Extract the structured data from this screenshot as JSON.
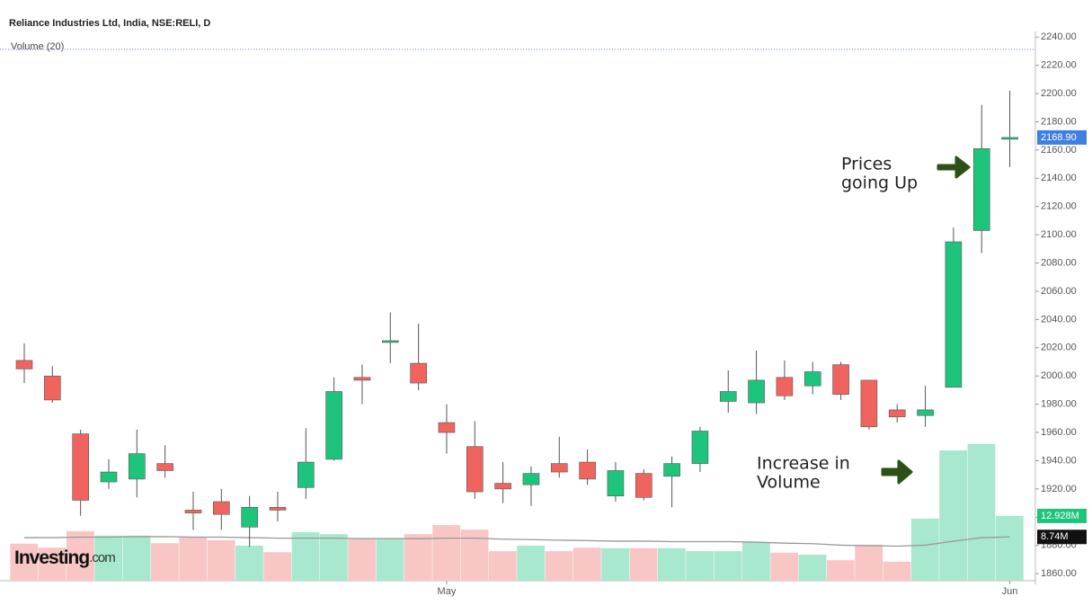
{
  "chart_data": {
    "type": "candlestick",
    "title": "Reliance Industries Ltd, India, NSE:RELI, D",
    "subtitle": "Volume (20)",
    "logo": "Investing",
    "logo_suffix": ".com",
    "categories": [
      null,
      null,
      null,
      null,
      null,
      null,
      null,
      null,
      null,
      null,
      null,
      null,
      null,
      null,
      null,
      "May",
      null,
      null,
      null,
      null,
      null,
      null,
      null,
      null,
      null,
      null,
      null,
      null,
      null,
      null,
      null,
      null,
      null,
      null,
      null,
      "Jun"
    ],
    "open": [
      2011,
      2000,
      1959,
      1925,
      1927,
      1938,
      1905,
      1911,
      1893,
      1907,
      1921,
      1941,
      1999,
      2024,
      2009,
      1967,
      1950,
      1924,
      1923,
      1938,
      1939,
      1915,
      1931,
      1929,
      1938,
      1982,
      1981,
      1999,
      1993,
      2008,
      1997,
      1976,
      1972,
      1992,
      2103,
      2168
    ],
    "high": [
      2023,
      2007,
      1962,
      1941,
      1962,
      1951,
      1918,
      1920,
      1915,
      1918,
      1963,
      1999,
      2008,
      2045,
      2037,
      1980,
      1968,
      1939,
      1936,
      1957,
      1948,
      1939,
      1934,
      1943,
      1964,
      2004,
      2018,
      2011,
      2010,
      2010,
      1997,
      1980,
      1993,
      2105,
      2192,
      2202
    ],
    "low": [
      1995,
      1981,
      1901,
      1920,
      1914,
      1928,
      1891,
      1891,
      1879,
      1897,
      1913,
      1940,
      1980,
      2009,
      1990,
      1945,
      1913,
      1910,
      1908,
      1928,
      1923,
      1911,
      1912,
      1907,
      1932,
      1974,
      1973,
      1983,
      1987,
      1983,
      1962,
      1967,
      1964,
      1992,
      2087,
      2148
    ],
    "close": [
      2005,
      1983,
      1912,
      1932,
      1945,
      1933,
      1903,
      1902,
      1907,
      1905,
      1939,
      1989,
      1997,
      2025,
      1995,
      1960,
      1918,
      1920,
      1931,
      1932,
      1927,
      1933,
      1914,
      1938,
      1961,
      1989,
      1997,
      1986,
      2003,
      1987,
      1964,
      1971,
      1976,
      2095,
      2161,
      2168.9
    ],
    "up_color": "#1fc47c",
    "down_color": "#f0645f",
    "ylim": [
      1855,
      2243
    ],
    "yticks": [
      {
        "value": 1860,
        "label": "1860.00"
      },
      {
        "value": 1880,
        "label": "1880.00"
      },
      {
        "value": 1900,
        "label": "1900.00"
      },
      {
        "value": 1920,
        "label": "1920.00"
      },
      {
        "value": 1940,
        "label": "1940.00"
      },
      {
        "value": 1960,
        "label": "1960.00"
      },
      {
        "value": 1980,
        "label": "1980.00"
      },
      {
        "value": 2000,
        "label": "2000.00"
      },
      {
        "value": 2020,
        "label": "2020.00"
      },
      {
        "value": 2040,
        "label": "2040.00"
      },
      {
        "value": 2060,
        "label": "2060.00"
      },
      {
        "value": 2080,
        "label": "2080.00"
      },
      {
        "value": 2100,
        "label": "2100.00"
      },
      {
        "value": 2120,
        "label": "2120.00"
      },
      {
        "value": 2140,
        "label": "2140.00"
      },
      {
        "value": 2160,
        "label": "2160.00"
      },
      {
        "value": 2180,
        "label": "2180.00"
      },
      {
        "value": 2200,
        "label": "2200.00"
      },
      {
        "value": 2220,
        "label": "2220.00"
      },
      {
        "value": 2240,
        "label": "2240.00"
      }
    ],
    "last_price": {
      "value": 2168.9,
      "label": "2168.90",
      "color": "#3f7fe0"
    },
    "volume": {
      "values": [
        7.4,
        6.6,
        9.9,
        9.0,
        9.0,
        7.5,
        8.6,
        8.1,
        7.0,
        5.7,
        9.7,
        9.3,
        8.3,
        8.3,
        9.3,
        11.1,
        10.2,
        5.9,
        7.0,
        5.9,
        6.6,
        6.5,
        6.5,
        6.5,
        5.9,
        5.9,
        7.7,
        5.6,
        5.2,
        4.1,
        7.2,
        3.8,
        12.4,
        26.0,
        27.3,
        12.928
      ],
      "ma": [
        8.6,
        8.6,
        8.7,
        8.7,
        8.8,
        8.8,
        8.7,
        8.7,
        8.6,
        8.5,
        8.5,
        8.5,
        8.4,
        8.4,
        8.4,
        8.5,
        8.5,
        8.3,
        8.2,
        8.1,
        8.0,
        7.9,
        7.9,
        7.8,
        7.8,
        7.8,
        7.7,
        7.5,
        7.4,
        7.1,
        7.0,
        6.9,
        7.1,
        7.9,
        8.6,
        8.74
      ],
      "ylim": [
        0,
        40
      ],
      "up_color": "#a8e8cf",
      "down_color": "#f9c6c6",
      "ma_color": "#999999",
      "last_label": {
        "value": 12.928,
        "label": "12.928M",
        "color": "#1fc47c"
      },
      "ma_label": {
        "value": 8.74,
        "label": "8.74M",
        "color": "#111111"
      }
    },
    "annotations": [
      {
        "lines": [
          "Prices",
          "going Up"
        ]
      },
      {
        "lines": [
          "Increase in",
          "Volume"
        ]
      }
    ]
  }
}
